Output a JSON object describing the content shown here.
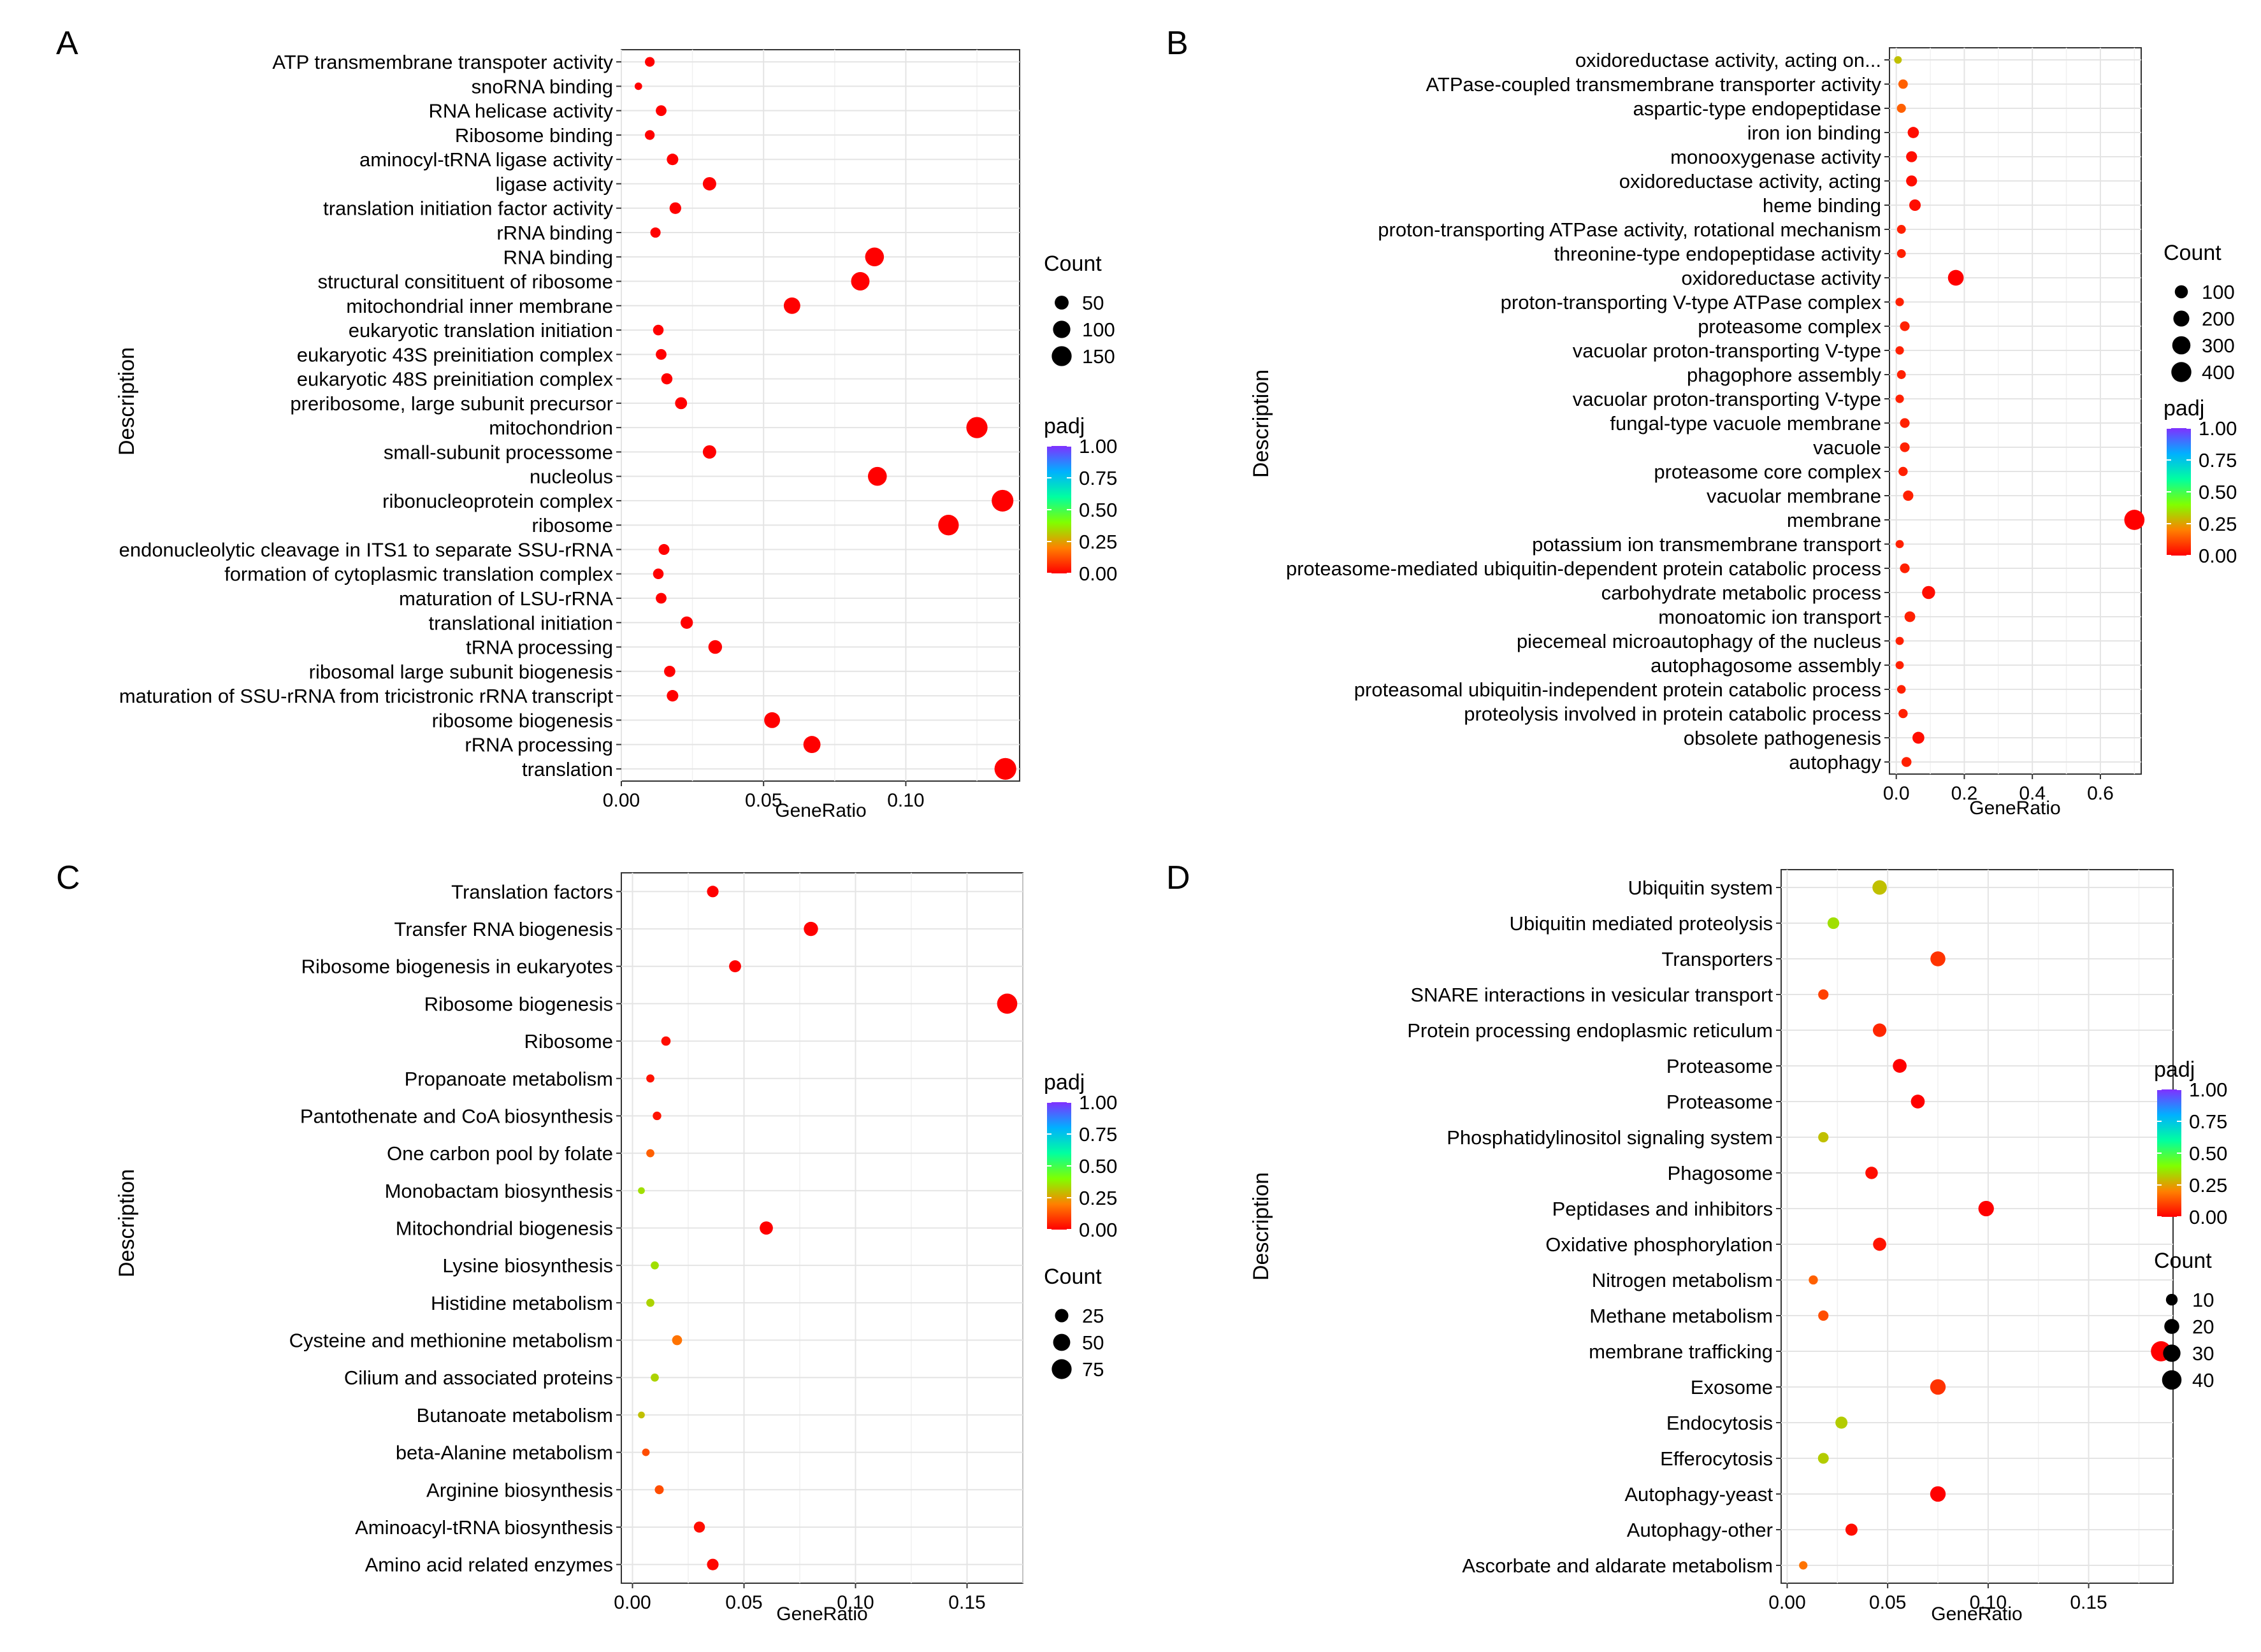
{
  "figure": {
    "panels": [
      {
        "label": "A",
        "x_title": "GeneRatio",
        "y_title": "Description",
        "size_legend_title": "Count",
        "color_legend_title": "padj",
        "size_legend_first": true,
        "size_legend": [
          50,
          100,
          150
        ],
        "color_legend_ticks": [
          "1.00",
          "0.75",
          "0.50",
          "0.25",
          "0.00"
        ],
        "size_range": [
          5,
          160
        ]
      },
      {
        "label": "B",
        "x_title": "GeneRatio",
        "y_title": "Description",
        "size_legend_title": "Count",
        "color_legend_title": "padj",
        "size_legend_first": true,
        "size_legend": [
          100,
          200,
          300,
          400
        ],
        "color_legend_ticks": [
          "1.00",
          "0.75",
          "0.50",
          "0.25",
          "0.00"
        ],
        "size_range": [
          5,
          420
        ]
      },
      {
        "label": "C",
        "x_title": "GeneRatio",
        "y_title": "Description",
        "size_legend_title": "Count",
        "color_legend_title": "padj",
        "size_legend_first": false,
        "size_legend": [
          25,
          50,
          75
        ],
        "color_legend_ticks": [
          "1.00",
          "0.75",
          "0.50",
          "0.25",
          "0.00"
        ],
        "size_range": [
          2,
          80
        ]
      },
      {
        "label": "D",
        "x_title": "GeneRatio",
        "y_title": "Description",
        "size_legend_title": "Count",
        "color_legend_title": "padj",
        "size_legend_first": false,
        "size_legend": [
          10,
          20,
          30,
          40
        ],
        "color_legend_ticks": [
          "1.00",
          "0.75",
          "0.50",
          "0.25",
          "0.00"
        ],
        "size_range": [
          2,
          45
        ]
      }
    ]
  },
  "chart_data": [
    {
      "panel": "A",
      "type": "scatter",
      "title": "",
      "xlabel": "GeneRatio",
      "ylabel": "Description",
      "xlim": [
        0.0,
        0.14
      ],
      "xticks": [
        "0.00",
        "0.05",
        "0.10"
      ],
      "categories": [
        "ATP transmembrane transpoter activity",
        "snoRNA binding",
        "RNA helicase activity",
        "Ribosome binding",
        "aminocyl-tRNA ligase activity",
        "ligase activity",
        "translation initiation factor activity",
        "rRNA binding",
        "RNA binding",
        "structural consitituent of ribosome",
        "mitochondrial inner membrane",
        "eukaryotic translation initiation",
        "eukaryotic 43S preinitiation complex",
        "eukaryotic 48S preinitiation complex",
        "preribosome, large subunit precursor",
        "mitochondrion",
        "small-subunit processome",
        "nucleolus",
        "ribonucleoprotein complex",
        "ribosome",
        "endonucleolytic cleavage in ITS1 to separate SSU-rRNA",
        "formation of cytoplasmic translation complex",
        "maturation of LSU-rRNA",
        "translational initiation",
        "tRNA processing",
        "ribosomal large subunit biogenesis",
        "maturation of SSU-rRNA from tricistronic rRNA transcript",
        "ribosome biogenesis",
        "rRNA processing",
        "translation"
      ],
      "x": [
        0.01,
        0.006,
        0.014,
        0.01,
        0.018,
        0.031,
        0.019,
        0.012,
        0.089,
        0.084,
        0.06,
        0.013,
        0.014,
        0.016,
        0.021,
        0.125,
        0.031,
        0.09,
        0.134,
        0.115,
        0.015,
        0.013,
        0.014,
        0.023,
        0.033,
        0.017,
        0.018,
        0.053,
        0.067,
        0.135
      ],
      "count": [
        14,
        6,
        20,
        14,
        26,
        44,
        27,
        17,
        127,
        120,
        86,
        19,
        20,
        23,
        30,
        178,
        44,
        128,
        191,
        164,
        21,
        19,
        20,
        33,
        47,
        24,
        26,
        76,
        96,
        193
      ],
      "padj": [
        0,
        0,
        0,
        0,
        0,
        0,
        0,
        0,
        0,
        0,
        0,
        0,
        0,
        0,
        0,
        0,
        0,
        0,
        0,
        0,
        0,
        0,
        0,
        0,
        0,
        0,
        0,
        0,
        0,
        0
      ]
    },
    {
      "panel": "B",
      "type": "scatter",
      "title": "",
      "xlabel": "GeneRatio",
      "ylabel": "Description",
      "xlim": [
        -0.02,
        0.72
      ],
      "xticks": [
        "0.0",
        "0.2",
        "0.4",
        "0.6"
      ],
      "categories": [
        "oxidoreductase activity, acting on...",
        "ATPase-coupled transmembrane transporter activity",
        "aspartic-type endopeptidase",
        "iron ion binding",
        "monooxygenase activity",
        "oxidoreductase activity, acting",
        "heme binding",
        "proton-transporting ATPase activity, rotational mechanism",
        "threonine-type endopeptidase  activity",
        "oxidoreductase activity",
        "proton-transporting V-type ATPase complex",
        "proteasome complex",
        "vacuolar proton-transporting V-type",
        "phagophore assembly",
        "vacuolar proton-transporting V-type",
        "fungal-type vacuole membrane",
        "vacuole",
        "proteasome core complex",
        "vacuolar membrane",
        "membrane",
        "potassium ion transmembrane transport",
        "proteasome-mediated ubiquitin-dependent protein catabolic process",
        "carbohydrate metabolic process",
        "monoatomic ion transport",
        "piecemeal microautophagy of the nucleus",
        "autophagosome assembly",
        "proteasomal ubiquitin-independent protein catabolic process",
        "proteolysis involved in protein catabolic process",
        "obsolete pathogenesis",
        "autophagy"
      ],
      "x": [
        0.005,
        0.02,
        0.015,
        0.05,
        0.045,
        0.045,
        0.055,
        0.015,
        0.015,
        0.175,
        0.01,
        0.025,
        0.01,
        0.015,
        0.01,
        0.025,
        0.025,
        0.02,
        0.035,
        0.7,
        0.01,
        0.025,
        0.095,
        0.04,
        0.01,
        0.01,
        0.015,
        0.02,
        0.065,
        0.03
      ],
      "count": [
        8,
        25,
        20,
        55,
        50,
        50,
        60,
        18,
        18,
        190,
        14,
        28,
        14,
        18,
        14,
        28,
        28,
        22,
        38,
        410,
        12,
        28,
        100,
        45,
        12,
        12,
        16,
        22,
        70,
        32
      ],
      "padj": [
        0.3,
        0.15,
        0.15,
        0.02,
        0.02,
        0.02,
        0.02,
        0.05,
        0.05,
        0.0,
        0.05,
        0.05,
        0.05,
        0.05,
        0.05,
        0.05,
        0.05,
        0.05,
        0.05,
        0.0,
        0.05,
        0.05,
        0.02,
        0.05,
        0.05,
        0.05,
        0.05,
        0.05,
        0.02,
        0.05
      ]
    },
    {
      "panel": "C",
      "type": "scatter",
      "title": "",
      "xlabel": "GeneRatio",
      "ylabel": "Description",
      "xlim": [
        -0.005,
        0.175
      ],
      "xticks": [
        "0.00",
        "0.05",
        "0.10",
        "0.15"
      ],
      "categories": [
        "Translation factors",
        "Transfer RNA biogenesis",
        "Ribosome biogenesis in eukaryotes",
        "Ribosome biogenesis",
        "Ribosome",
        "Propanoate metabolism",
        "Pantothenate and CoA biosynthesis",
        "One carbon pool by folate",
        "Monobactam biosynthesis",
        "Mitochondrial biogenesis",
        "Lysine biosynthesis",
        "Histidine metabolism",
        "Cysteine and methionine metabolism",
        "Cilium and associated proteins",
        "Butanoate metabolism",
        "beta-Alanine metabolism",
        "Arginine biosynthesis",
        "Aminoacyl-tRNA biosynthesis",
        "Amino acid related enzymes"
      ],
      "x": [
        0.036,
        0.08,
        0.046,
        0.168,
        0.015,
        0.008,
        0.011,
        0.008,
        0.004,
        0.06,
        0.01,
        0.008,
        0.02,
        0.01,
        0.004,
        0.006,
        0.012,
        0.03,
        0.036
      ],
      "count": [
        16,
        30,
        18,
        78,
        8,
        5,
        6,
        5,
        3,
        24,
        5,
        5,
        10,
        5,
        3,
        4,
        7,
        14,
        16
      ],
      "padj": [
        0.0,
        0.0,
        0.0,
        0.0,
        0.02,
        0.03,
        0.03,
        0.15,
        0.35,
        0.0,
        0.35,
        0.33,
        0.18,
        0.33,
        0.3,
        0.12,
        0.12,
        0.02,
        0.01
      ]
    },
    {
      "panel": "D",
      "type": "scatter",
      "title": "",
      "xlabel": "GeneRatio",
      "ylabel": "Description",
      "xlim": [
        -0.003,
        0.192
      ],
      "xticks": [
        "0.00",
        "0.05",
        "0.10",
        "0.15"
      ],
      "categories": [
        "Ubiquitin system",
        "Ubiquitin mediated proteolysis",
        "Transporters",
        "SNARE interactions in vesicular transport",
        "Protein processing endoplasmic reticulum",
        "Proteasome",
        "Proteasome",
        "Phosphatidylinositol signaling system",
        "Phagosome",
        "Peptidases and inhibitors",
        "Oxidative phosphorylation",
        "Nitrogen metabolism",
        "Methane metabolism",
        "membrane trafficking",
        "Exosome",
        "Endocytosis",
        "Efferocytosis",
        "Autophagy-yeast",
        "Autophagy-other",
        "Ascorbate and aldarate metabolism"
      ],
      "x": [
        0.046,
        0.023,
        0.075,
        0.018,
        0.046,
        0.056,
        0.065,
        0.018,
        0.042,
        0.099,
        0.046,
        0.013,
        0.018,
        0.186,
        0.075,
        0.027,
        0.018,
        0.075,
        0.032,
        0.008
      ],
      "count": [
        18,
        10,
        20,
        7,
        15,
        16,
        16,
        7,
        12,
        22,
        14,
        5,
        7,
        44,
        22,
        11,
        8,
        22,
        11,
        4
      ],
      "padj": [
        0.3,
        0.35,
        0.08,
        0.1,
        0.06,
        0.0,
        0.0,
        0.3,
        0.02,
        0.0,
        0.03,
        0.15,
        0.12,
        0.0,
        0.08,
        0.32,
        0.32,
        0.0,
        0.02,
        0.18
      ]
    }
  ]
}
